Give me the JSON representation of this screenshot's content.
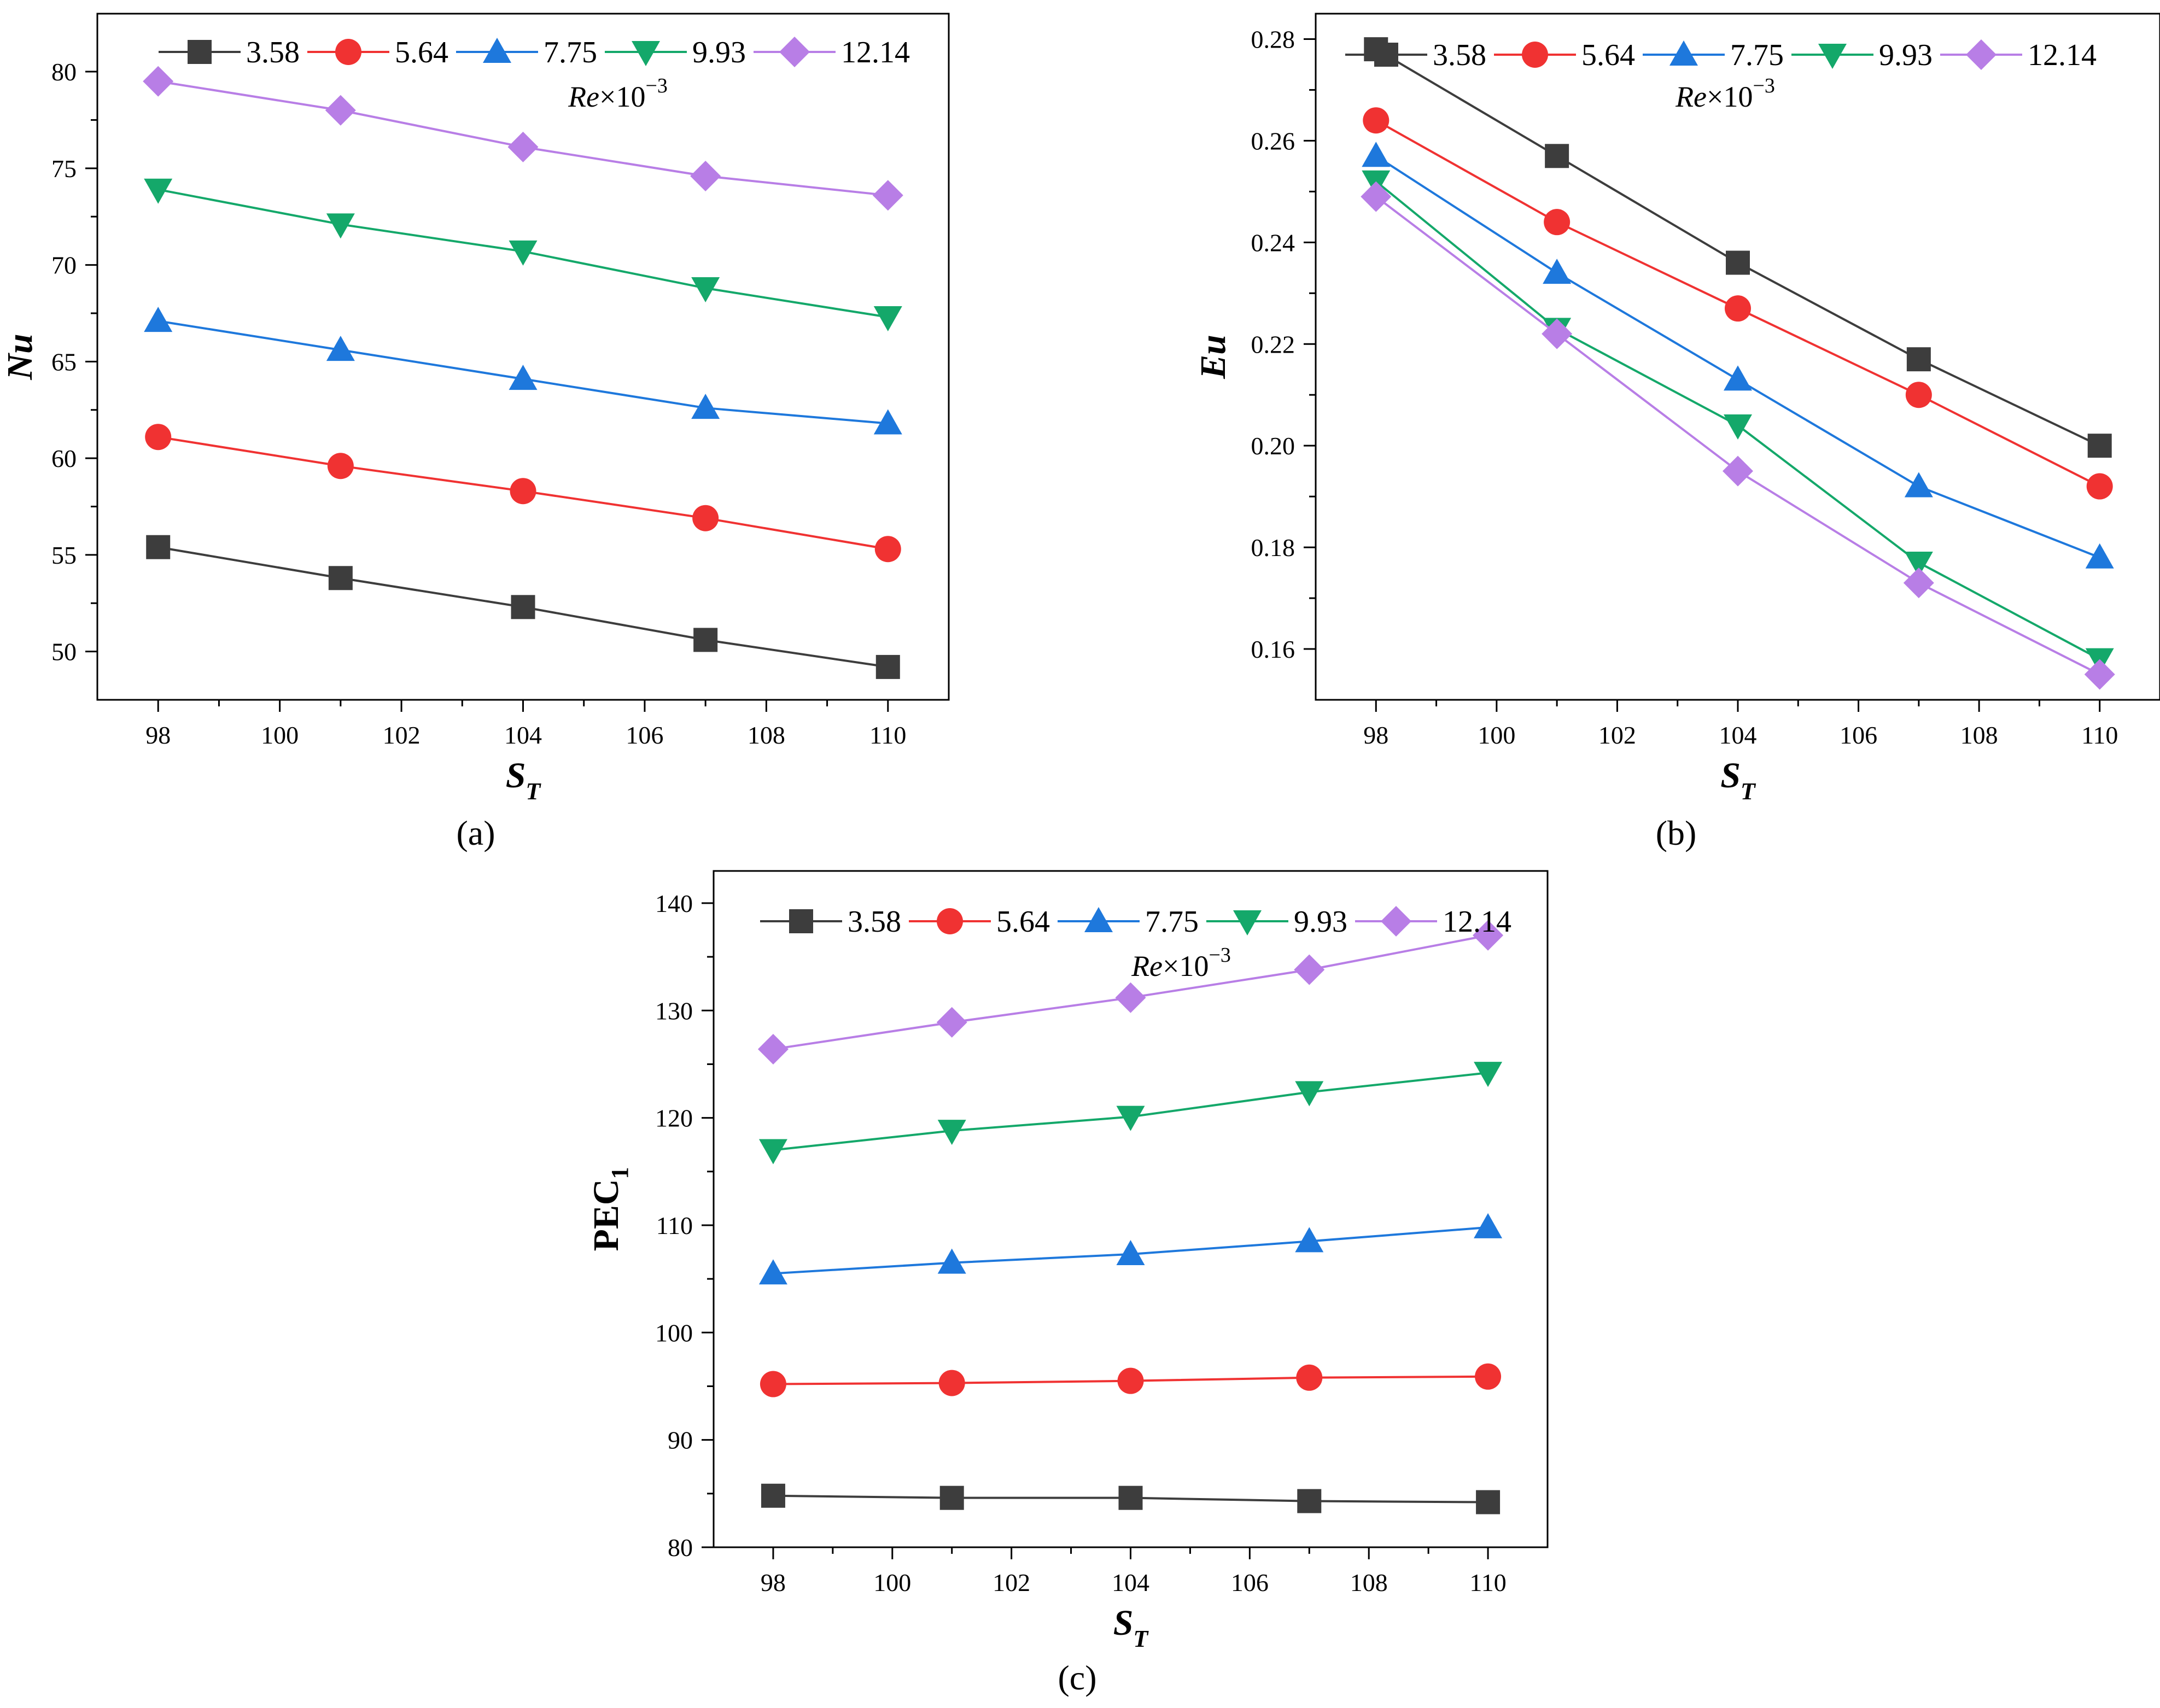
{
  "legend_title": {
    "var": "Re",
    "rest": "×10",
    "exp": "−3"
  },
  "series_colors": [
    "#3d3d3d",
    "#f03232",
    "#1e78dc",
    "#14a86a",
    "#b87ee6"
  ],
  "series_markers": [
    "square",
    "circle",
    "triangle-up",
    "triangle-down",
    "diamond"
  ],
  "chart_data": [
    {
      "type": "line",
      "panel_label": "(a)",
      "xlabel": "S",
      "xlabel_sub": "T",
      "ylabel": "Nu",
      "ylabel_sub": "",
      "xlim": [
        97,
        111
      ],
      "ylim": [
        47.5,
        83
      ],
      "xticks": [
        98,
        100,
        102,
        104,
        106,
        108,
        110
      ],
      "yticks": [
        50,
        55,
        60,
        65,
        70,
        75,
        80
      ],
      "x": [
        98,
        101,
        104,
        107,
        110
      ],
      "series": [
        {
          "name": "3.58",
          "values": [
            55.4,
            53.8,
            52.3,
            50.6,
            49.2
          ]
        },
        {
          "name": "5.64",
          "values": [
            61.1,
            59.6,
            58.3,
            56.9,
            55.3
          ]
        },
        {
          "name": "7.75",
          "values": [
            67.1,
            65.6,
            64.1,
            62.6,
            61.8
          ]
        },
        {
          "name": "9.93",
          "values": [
            73.9,
            72.1,
            70.7,
            68.8,
            67.3
          ]
        },
        {
          "name": "12.14",
          "values": [
            79.5,
            78.0,
            76.1,
            74.6,
            73.6
          ]
        }
      ]
    },
    {
      "type": "line",
      "panel_label": "(b)",
      "xlabel": "S",
      "xlabel_sub": "T",
      "ylabel": "Eu",
      "ylabel_sub": "",
      "xlim": [
        97,
        111
      ],
      "ylim": [
        0.15,
        0.285
      ],
      "xticks": [
        98,
        100,
        102,
        104,
        106,
        108,
        110
      ],
      "yticks": [
        0.16,
        0.18,
        0.2,
        0.22,
        0.24,
        0.26,
        0.28
      ],
      "yticks_text": [
        "0.16",
        "0.18",
        "0.20",
        "0.22",
        "0.24",
        "0.26",
        "0.28"
      ],
      "x": [
        98,
        101,
        104,
        107,
        110
      ],
      "series": [
        {
          "name": "3.58",
          "values": [
            0.278,
            0.257,
            0.236,
            0.217,
            0.2
          ]
        },
        {
          "name": "5.64",
          "values": [
            0.264,
            0.244,
            0.227,
            0.21,
            0.192
          ]
        },
        {
          "name": "7.75",
          "values": [
            0.257,
            0.234,
            0.213,
            0.192,
            0.178
          ]
        },
        {
          "name": "9.93",
          "values": [
            0.252,
            0.223,
            0.204,
            0.177,
            0.158
          ]
        },
        {
          "name": "12.14",
          "values": [
            0.249,
            0.222,
            0.195,
            0.173,
            0.155
          ]
        }
      ]
    },
    {
      "type": "line",
      "panel_label": "(c)",
      "xlabel": "S",
      "xlabel_sub": "T",
      "ylabel": "PEC",
      "ylabel_sub": "1",
      "xlim": [
        97,
        111
      ],
      "ylim": [
        80,
        143
      ],
      "xticks": [
        98,
        100,
        102,
        104,
        106,
        108,
        110
      ],
      "yticks": [
        80,
        90,
        100,
        110,
        120,
        130,
        140
      ],
      "x": [
        98,
        101,
        104,
        107,
        110
      ],
      "series": [
        {
          "name": "3.58",
          "values": [
            84.8,
            84.6,
            84.6,
            84.3,
            84.2
          ]
        },
        {
          "name": "5.64",
          "values": [
            95.2,
            95.3,
            95.5,
            95.8,
            95.9
          ]
        },
        {
          "name": "7.75",
          "values": [
            105.5,
            106.5,
            107.3,
            108.5,
            109.8
          ]
        },
        {
          "name": "9.93",
          "values": [
            117.0,
            118.8,
            120.1,
            122.4,
            124.2
          ]
        },
        {
          "name": "12.14",
          "values": [
            126.4,
            128.9,
            131.2,
            133.8,
            137.0
          ]
        }
      ]
    }
  ]
}
